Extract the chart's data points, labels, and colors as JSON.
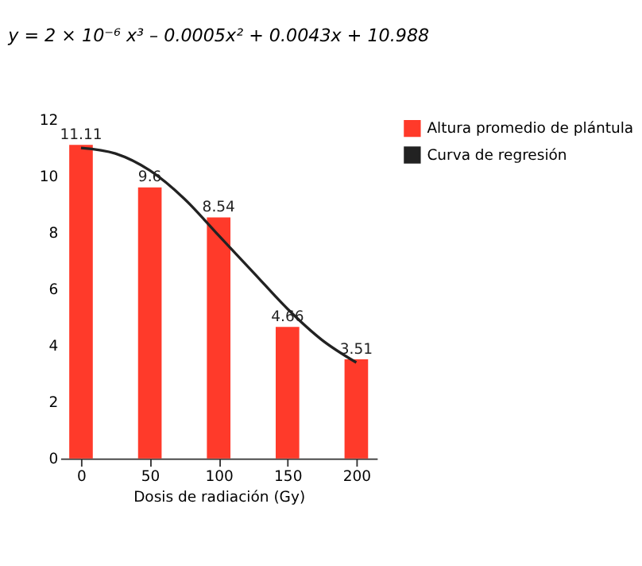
{
  "chart_data": {
    "type": "bar",
    "title": "y = 2 × 10⁻⁶ x³ – 0.0005x² + 0.0043x + 10.988",
    "xlabel": "Dosis de radiación (Gy)",
    "x": [
      0,
      50,
      100,
      150,
      200
    ],
    "series": [
      {
        "name": "Altura promedio de plántula",
        "color": "#ff3a2a",
        "values": [
          11.11,
          9.6,
          8.54,
          4.66,
          3.51
        ],
        "value_labels": [
          "11.11",
          "9.6",
          "8.54",
          "4.66",
          "3.51"
        ]
      },
      {
        "name": "Curva de regresión",
        "type": "line",
        "color": "#222222",
        "x": [
          0,
          25,
          50,
          75,
          100,
          125,
          150,
          175,
          200
        ],
        "values": [
          11.0,
          10.8,
          10.2,
          9.2,
          7.9,
          6.6,
          5.3,
          4.2,
          3.4
        ]
      }
    ],
    "xlim": [
      -15,
      215
    ],
    "xticks": [
      0,
      50,
      100,
      150,
      200
    ],
    "ylim": [
      0,
      12
    ],
    "yticks": [
      0,
      2,
      4,
      6,
      8,
      10,
      12
    ],
    "grid": false,
    "legend": "right",
    "line_style": "solid",
    "marker": "none"
  }
}
